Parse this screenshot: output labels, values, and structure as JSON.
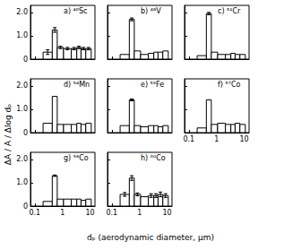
{
  "chart_data": [
    {
      "type": "histogram",
      "title": "a) ⁴⁶Sc",
      "bins": [
        0.2,
        0.43,
        0.65,
        1.1,
        2.1,
        3.3,
        4.7,
        7,
        11
      ],
      "values": [
        0.3,
        1.25,
        0.5,
        0.45,
        0.45,
        0.5,
        0.45,
        0.45
      ],
      "errors": [
        0.1,
        0.1,
        0.05,
        0.05,
        0.05,
        0.05,
        0.05,
        0.05
      ],
      "color": "#ffffff",
      "log": "x",
      "grid": false,
      "xlim": [
        0.07,
        15
      ],
      "xticks": [
        0.1,
        1,
        10
      ],
      "ylim": [
        0,
        2.3
      ],
      "yticks": [
        0,
        {
          "value": 1,
          "label": "1.0"
        },
        {
          "value": 2,
          "label": "2.0"
        }
      ],
      "tick_labels": "y"
    },
    {
      "type": "histogram",
      "title": "b) ⁴⁸V",
      "bins": [
        0.2,
        0.43,
        0.65,
        1.1,
        2.1,
        3.3,
        4.7,
        7,
        11
      ],
      "values": [
        0.2,
        1.7,
        0.35,
        0.2,
        0.25,
        0.3,
        0.3,
        0.35
      ],
      "errors": [
        null,
        0.06,
        null,
        null,
        null,
        null,
        null,
        null
      ],
      "color": "#ffffff",
      "log": "x",
      "grid": false,
      "xlim": [
        0.07,
        15
      ],
      "xticks": [
        0.1,
        1,
        10
      ],
      "ylim": [
        0,
        2.3
      ],
      "yticks": [
        0,
        {
          "value": 1,
          "label": "1.0"
        },
        {
          "value": 2,
          "label": "2.0"
        }
      ],
      "tick_labels": false
    },
    {
      "type": "histogram",
      "title": "c) ⁵¹Cr",
      "bins": [
        0.2,
        0.43,
        0.65,
        1.1,
        2.1,
        3.3,
        4.7,
        7,
        11
      ],
      "values": [
        0.15,
        1.95,
        0.3,
        0.2,
        0.2,
        0.25,
        0.2,
        0.2
      ],
      "errors": [
        null,
        0.05,
        null,
        null,
        null,
        null,
        null,
        null
      ],
      "color": "#ffffff",
      "log": "x",
      "grid": false,
      "xlim": [
        0.07,
        15
      ],
      "xticks": [
        0.1,
        1,
        10
      ],
      "ylim": [
        0,
        2.3
      ],
      "yticks": [
        0,
        {
          "value": 1,
          "label": "1.0"
        },
        {
          "value": 2,
          "label": "2.0"
        }
      ],
      "tick_labels": false
    },
    {
      "type": "histogram",
      "title": "d) ⁵⁴Mn",
      "ylabel": "ΔA / A / Δlog dₚ",
      "bins": [
        0.2,
        0.43,
        0.65,
        1.1,
        2.1,
        3.3,
        4.7,
        7,
        11
      ],
      "values": [
        0.4,
        1.55,
        0.35,
        0.35,
        0.35,
        0.4,
        0.35,
        0.4
      ],
      "errors": [
        null,
        null,
        null,
        null,
        null,
        null,
        null,
        null
      ],
      "color": "#ffffff",
      "log": "x",
      "grid": false,
      "xlim": [
        0.07,
        15
      ],
      "xticks": [
        0.1,
        1,
        10
      ],
      "ylim": [
        0,
        2.3
      ],
      "yticks": [
        0,
        {
          "value": 1,
          "label": "1.0"
        },
        {
          "value": 2,
          "label": "2.0"
        }
      ],
      "tick_labels": "y"
    },
    {
      "type": "histogram",
      "title": "e) ⁵⁹Fe",
      "bins": [
        0.2,
        0.43,
        0.65,
        1.1,
        2.1,
        3.3,
        4.7,
        7,
        11
      ],
      "values": [
        0.3,
        1.4,
        0.3,
        0.25,
        0.3,
        0.3,
        0.25,
        0.3
      ],
      "errors": [
        null,
        0.04,
        null,
        null,
        null,
        null,
        null,
        null
      ],
      "color": "#ffffff",
      "log": "x",
      "grid": false,
      "xlim": [
        0.07,
        15
      ],
      "xticks": [
        0.1,
        1,
        10
      ],
      "ylim": [
        0,
        2.3
      ],
      "yticks": [
        0,
        {
          "value": 1,
          "label": "1.0"
        },
        {
          "value": 2,
          "label": "2.0"
        }
      ],
      "tick_labels": false
    },
    {
      "type": "histogram",
      "title": "f) ⁵⁷Co",
      "bins": [
        0.2,
        0.43,
        0.65,
        1.1,
        2.1,
        3.3,
        4.7,
        7,
        11
      ],
      "values": [
        0.2,
        1.4,
        0.35,
        0.4,
        0.35,
        0.35,
        0.4,
        0.35
      ],
      "errors": [
        null,
        null,
        null,
        null,
        null,
        null,
        null,
        null
      ],
      "color": "#ffffff",
      "log": "x",
      "grid": false,
      "xlim": [
        0.07,
        15
      ],
      "xticks": [
        0.1,
        1,
        10
      ],
      "ylim": [
        0,
        2.3
      ],
      "yticks": [
        0,
        {
          "value": 1,
          "label": "1.0"
        },
        {
          "value": 2,
          "label": "2.0"
        }
      ],
      "tick_labels": "x"
    },
    {
      "type": "histogram",
      "title": "g) ⁵⁸Co",
      "xlabel": "dₚ (aerodynamic diameter, μm)",
      "bins": [
        0.2,
        0.43,
        0.65,
        1.1,
        2.1,
        3.3,
        4.7,
        7,
        11
      ],
      "values": [
        0.2,
        1.3,
        0.3,
        0.3,
        0.3,
        0.3,
        0.25,
        0.3
      ],
      "errors": [
        null,
        0.03,
        null,
        null,
        null,
        null,
        null,
        null
      ],
      "color": "#ffffff",
      "log": "x",
      "grid": false,
      "xlim": [
        0.07,
        15
      ],
      "xticks": [
        0.1,
        1,
        10
      ],
      "ylim": [
        0,
        2.3
      ],
      "yticks": [
        0,
        {
          "value": 1,
          "label": "1.0"
        },
        {
          "value": 2,
          "label": "2.0"
        }
      ]
    },
    {
      "type": "histogram",
      "title": "h) ⁶⁰Co",
      "bins": [
        0.2,
        0.43,
        0.65,
        1.1,
        2.1,
        3.3,
        4.7,
        7,
        11
      ],
      "values": [
        0.5,
        1.2,
        0.5,
        0.4,
        0.45,
        0.45,
        0.5,
        0.45
      ],
      "errors": [
        0.08,
        0.1,
        0.06,
        null,
        0.08,
        0.08,
        0.1,
        0.08
      ],
      "color": "#ffffff",
      "log": "x",
      "grid": false,
      "xlim": [
        0.07,
        15
      ],
      "xticks": [
        0.1,
        1,
        10
      ],
      "ylim": [
        0,
        2.3
      ],
      "yticks": [
        0,
        {
          "value": 1,
          "label": "1.0"
        },
        {
          "value": 2,
          "label": "2.0"
        }
      ],
      "tick_labels": "x"
    }
  ]
}
